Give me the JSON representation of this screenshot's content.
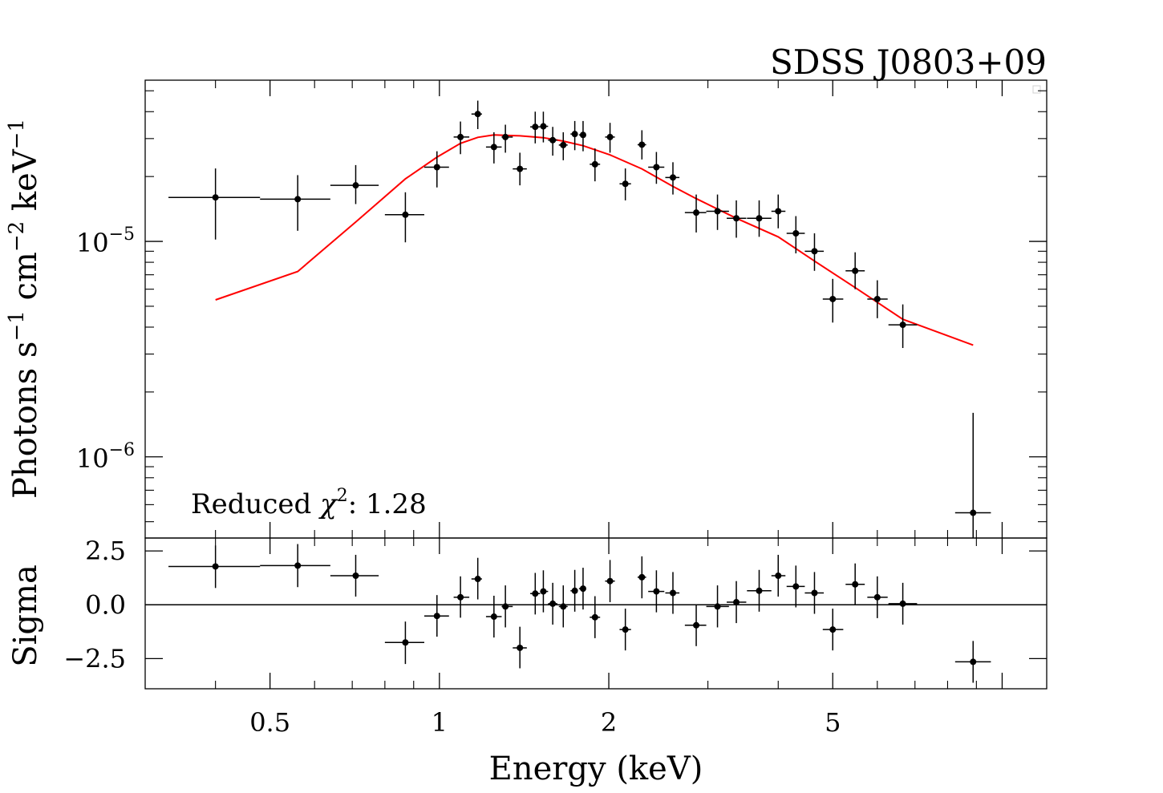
{
  "chart_data": [
    {
      "type": "scatter",
      "panel": "spectrum",
      "title": "SDSS J0803+09",
      "xlabel": "Energy (keV)",
      "ylabel": "Photons s^-1 cm^-2 keV^-1",
      "ylabel_parts": {
        "base": "Photons s",
        "e1": "−1",
        "mid": " cm",
        "e2": "−2",
        "mid2": " keV",
        "e3": "−1"
      },
      "xscale": "log",
      "yscale": "log",
      "xlim": [
        0.3,
        12
      ],
      "ylim": [
        4.2e-07,
        5.6e-05
      ],
      "y_ticks": [
        {
          "value": 1e-05,
          "base": "10",
          "exp": "−5"
        },
        {
          "value": 1e-06,
          "base": "10",
          "exp": "−6"
        }
      ],
      "annotation": {
        "prefix": "Reduced ",
        "symbol": "χ",
        "sup": "2",
        "suffix": ": 1.28"
      },
      "grid": false,
      "data_color": "#000000",
      "model_color": "#ff0000",
      "series": [
        {
          "kind": "errorbar",
          "points": [
            {
              "x": 0.4,
              "y": 1.6e-05,
              "xlo": 0.33,
              "xhi": 0.48,
              "ylo": 1.02e-05,
              "yhi": 2.18e-05
            },
            {
              "x": 0.56,
              "y": 1.57e-05,
              "xlo": 0.48,
              "xhi": 0.64,
              "ylo": 1.12e-05,
              "yhi": 2.03e-05
            },
            {
              "x": 0.71,
              "y": 1.82e-05,
              "xlo": 0.64,
              "xhi": 0.78,
              "ylo": 1.49e-05,
              "yhi": 2.26e-05
            },
            {
              "x": 0.87,
              "y": 1.33e-05,
              "xlo": 0.8,
              "xhi": 0.94,
              "ylo": 9.9e-06,
              "yhi": 1.69e-05
            },
            {
              "x": 0.99,
              "y": 2.21e-05,
              "xlo": 0.94,
              "xhi": 1.04,
              "ylo": 1.78e-05,
              "yhi": 2.62e-05
            },
            {
              "x": 1.09,
              "y": 3.05e-05,
              "xlo": 1.06,
              "xhi": 1.13,
              "ylo": 2.54e-05,
              "yhi": 3.6e-05
            },
            {
              "x": 1.17,
              "y": 3.9e-05,
              "xlo": 1.14,
              "xhi": 1.19,
              "ylo": 3.32e-05,
              "yhi": 4.5e-05
            },
            {
              "x": 1.25,
              "y": 2.74e-05,
              "xlo": 1.21,
              "xhi": 1.29,
              "ylo": 2.3e-05,
              "yhi": 3.21e-05
            },
            {
              "x": 1.31,
              "y": 3.05e-05,
              "xlo": 1.29,
              "xhi": 1.35,
              "ylo": 2.58e-05,
              "yhi": 3.48e-05
            },
            {
              "x": 1.39,
              "y": 2.17e-05,
              "xlo": 1.35,
              "xhi": 1.43,
              "ylo": 1.82e-05,
              "yhi": 2.58e-05
            },
            {
              "x": 1.48,
              "y": 3.4e-05,
              "xlo": 1.45,
              "xhi": 1.51,
              "ylo": 2.85e-05,
              "yhi": 4e-05
            },
            {
              "x": 1.53,
              "y": 3.42e-05,
              "xlo": 1.51,
              "xhi": 1.56,
              "ylo": 2.88e-05,
              "yhi": 4e-05
            },
            {
              "x": 1.59,
              "y": 2.95e-05,
              "xlo": 1.56,
              "xhi": 1.62,
              "ylo": 2.5e-05,
              "yhi": 3.4e-05
            },
            {
              "x": 1.66,
              "y": 2.8e-05,
              "xlo": 1.63,
              "xhi": 1.69,
              "ylo": 2.38e-05,
              "yhi": 3.21e-05
            },
            {
              "x": 1.74,
              "y": 3.15e-05,
              "xlo": 1.71,
              "xhi": 1.76,
              "ylo": 2.65e-05,
              "yhi": 3.62e-05
            },
            {
              "x": 1.8,
              "y": 3.12e-05,
              "xlo": 1.77,
              "xhi": 1.82,
              "ylo": 2.62e-05,
              "yhi": 3.62e-05
            },
            {
              "x": 1.89,
              "y": 2.28e-05,
              "xlo": 1.85,
              "xhi": 1.93,
              "ylo": 1.9e-05,
              "yhi": 2.7e-05
            },
            {
              "x": 2.01,
              "y": 3.05e-05,
              "xlo": 1.97,
              "xhi": 2.05,
              "ylo": 2.58e-05,
              "yhi": 3.55e-05
            },
            {
              "x": 2.14,
              "y": 1.85e-05,
              "xlo": 2.09,
              "xhi": 2.19,
              "ylo": 1.55e-05,
              "yhi": 2.18e-05
            },
            {
              "x": 2.29,
              "y": 2.81e-05,
              "xlo": 2.25,
              "xhi": 2.33,
              "ylo": 2.4e-05,
              "yhi": 3.28e-05
            },
            {
              "x": 2.43,
              "y": 2.21e-05,
              "xlo": 2.35,
              "xhi": 2.51,
              "ylo": 1.85e-05,
              "yhi": 2.6e-05
            },
            {
              "x": 2.6,
              "y": 1.98e-05,
              "xlo": 2.52,
              "xhi": 2.67,
              "ylo": 1.65e-05,
              "yhi": 2.33e-05
            },
            {
              "x": 2.86,
              "y": 1.36e-05,
              "xlo": 2.73,
              "xhi": 2.98,
              "ylo": 1.1e-05,
              "yhi": 1.65e-05
            },
            {
              "x": 3.12,
              "y": 1.38e-05,
              "xlo": 2.98,
              "xhi": 3.27,
              "ylo": 1.13e-05,
              "yhi": 1.65e-05
            },
            {
              "x": 3.37,
              "y": 1.28e-05,
              "xlo": 3.24,
              "xhi": 3.51,
              "ylo": 1.04e-05,
              "yhi": 1.55e-05
            },
            {
              "x": 3.7,
              "y": 1.28e-05,
              "xlo": 3.52,
              "xhi": 3.89,
              "ylo": 1.05e-05,
              "yhi": 1.55e-05
            },
            {
              "x": 4.0,
              "y": 1.38e-05,
              "xlo": 3.89,
              "xhi": 4.12,
              "ylo": 1.15e-05,
              "yhi": 1.65e-05
            },
            {
              "x": 4.3,
              "y": 1.09e-05,
              "xlo": 4.14,
              "xhi": 4.46,
              "ylo": 8.8e-06,
              "yhi": 1.31e-05
            },
            {
              "x": 4.64,
              "y": 9e-06,
              "xlo": 4.46,
              "xhi": 4.82,
              "ylo": 7.3e-06,
              "yhi": 1.09e-05
            },
            {
              "x": 5.0,
              "y": 5.4e-06,
              "xlo": 4.8,
              "xhi": 5.22,
              "ylo": 4.2e-06,
              "yhi": 6.7e-06
            },
            {
              "x": 5.48,
              "y": 7.3e-06,
              "xlo": 5.27,
              "xhi": 5.7,
              "ylo": 6e-06,
              "yhi": 8.9e-06
            },
            {
              "x": 6.0,
              "y": 5.4e-06,
              "xlo": 5.76,
              "xhi": 6.26,
              "ylo": 4.4e-06,
              "yhi": 6.6e-06
            },
            {
              "x": 6.66,
              "y": 4.1e-06,
              "xlo": 6.28,
              "xhi": 7.06,
              "ylo": 3.2e-06,
              "yhi": 5.1e-06
            },
            {
              "x": 8.88,
              "y": 5.5e-07,
              "xlo": 8.25,
              "xhi": 9.55,
              "ylo": 3e-07,
              "yhi": 1.6e-06
            }
          ]
        },
        {
          "kind": "model",
          "points": [
            {
              "x": 0.4,
              "y": 5.35e-06
            },
            {
              "x": 0.56,
              "y": 7.25e-06
            },
            {
              "x": 0.71,
              "y": 1.23e-05
            },
            {
              "x": 0.87,
              "y": 1.95e-05
            },
            {
              "x": 0.99,
              "y": 2.46e-05
            },
            {
              "x": 1.09,
              "y": 2.85e-05
            },
            {
              "x": 1.17,
              "y": 3.04e-05
            },
            {
              "x": 1.25,
              "y": 3.12e-05
            },
            {
              "x": 1.39,
              "y": 3.09e-05
            },
            {
              "x": 1.53,
              "y": 3.03e-05
            },
            {
              "x": 1.66,
              "y": 2.92e-05
            },
            {
              "x": 1.8,
              "y": 2.78e-05
            },
            {
              "x": 2.01,
              "y": 2.52e-05
            },
            {
              "x": 2.29,
              "y": 2.17e-05
            },
            {
              "x": 2.6,
              "y": 1.8e-05
            },
            {
              "x": 2.86,
              "y": 1.58e-05
            },
            {
              "x": 3.37,
              "y": 1.28e-05
            },
            {
              "x": 4.0,
              "y": 1.05e-05
            },
            {
              "x": 4.64,
              "y": 8.1e-06
            },
            {
              "x": 5.48,
              "y": 6.1e-06
            },
            {
              "x": 6.66,
              "y": 4.35e-06
            },
            {
              "x": 8.88,
              "y": 3.3e-06
            }
          ]
        }
      ]
    },
    {
      "type": "scatter",
      "panel": "residuals",
      "xlabel": "Energy (keV)",
      "ylabel": "Sigma",
      "xscale": "log",
      "yscale": "linear",
      "xlim": [
        0.3,
        12
      ],
      "ylim": [
        -3.9,
        3.1
      ],
      "x_ticks": [
        {
          "value": 0.5,
          "label": "0.5"
        },
        {
          "value": 1,
          "label": "1"
        },
        {
          "value": 2,
          "label": "2"
        },
        {
          "value": 5,
          "label": "5"
        }
      ],
      "y_ticks": [
        {
          "value": 2.5,
          "label": "2.5"
        },
        {
          "value": 0,
          "label": "0.0"
        },
        {
          "value": -2.5,
          "label": "−2.5"
        }
      ],
      "zero_line": 0,
      "grid": false,
      "series": [
        {
          "kind": "errorbar",
          "points": [
            {
              "x": 0.4,
              "y": 1.78,
              "xlo": 0.33,
              "xhi": 0.48,
              "ylo": 0.78,
              "yhi": 2.75
            },
            {
              "x": 0.56,
              "y": 1.82,
              "xlo": 0.48,
              "xhi": 0.64,
              "ylo": 0.82,
              "yhi": 2.82
            },
            {
              "x": 0.71,
              "y": 1.35,
              "xlo": 0.64,
              "xhi": 0.78,
              "ylo": 0.38,
              "yhi": 2.32
            },
            {
              "x": 0.87,
              "y": -1.75,
              "xlo": 0.8,
              "xhi": 0.94,
              "ylo": -2.75,
              "yhi": -0.78
            },
            {
              "x": 0.99,
              "y": -0.52,
              "xlo": 0.94,
              "xhi": 1.04,
              "ylo": -1.48,
              "yhi": 0.45
            },
            {
              "x": 1.09,
              "y": 0.35,
              "xlo": 1.06,
              "xhi": 1.13,
              "ylo": -0.6,
              "yhi": 1.32
            },
            {
              "x": 1.17,
              "y": 1.2,
              "xlo": 1.14,
              "xhi": 1.19,
              "ylo": 0.25,
              "yhi": 2.18
            },
            {
              "x": 1.25,
              "y": -0.55,
              "xlo": 1.21,
              "xhi": 1.29,
              "ylo": -1.52,
              "yhi": 0.42
            },
            {
              "x": 1.31,
              "y": -0.08,
              "xlo": 1.29,
              "xhi": 1.35,
              "ylo": -1.05,
              "yhi": 0.9
            },
            {
              "x": 1.39,
              "y": -2.0,
              "xlo": 1.35,
              "xhi": 1.43,
              "ylo": -2.95,
              "yhi": -1.02
            },
            {
              "x": 1.48,
              "y": 0.52,
              "xlo": 1.45,
              "xhi": 1.51,
              "ylo": -0.45,
              "yhi": 1.48
            },
            {
              "x": 1.53,
              "y": 0.62,
              "xlo": 1.51,
              "xhi": 1.56,
              "ylo": -0.35,
              "yhi": 1.6
            },
            {
              "x": 1.59,
              "y": 0.05,
              "xlo": 1.56,
              "xhi": 1.62,
              "ylo": -0.92,
              "yhi": 1.02
            },
            {
              "x": 1.66,
              "y": -0.08,
              "xlo": 1.63,
              "xhi": 1.69,
              "ylo": -1.05,
              "yhi": 0.9
            },
            {
              "x": 1.74,
              "y": 0.65,
              "xlo": 1.71,
              "xhi": 1.76,
              "ylo": -0.32,
              "yhi": 1.62
            },
            {
              "x": 1.8,
              "y": 0.75,
              "xlo": 1.77,
              "xhi": 1.82,
              "ylo": -0.22,
              "yhi": 1.72
            },
            {
              "x": 1.89,
              "y": -0.58,
              "xlo": 1.85,
              "xhi": 1.93,
              "ylo": -1.55,
              "yhi": 0.4
            },
            {
              "x": 2.01,
              "y": 1.1,
              "xlo": 1.97,
              "xhi": 2.05,
              "ylo": 0.12,
              "yhi": 2.08
            },
            {
              "x": 2.14,
              "y": -1.15,
              "xlo": 2.09,
              "xhi": 2.19,
              "ylo": -2.12,
              "yhi": -0.18
            },
            {
              "x": 2.29,
              "y": 1.28,
              "xlo": 2.25,
              "xhi": 2.33,
              "ylo": 0.3,
              "yhi": 2.25
            },
            {
              "x": 2.43,
              "y": 0.62,
              "xlo": 2.35,
              "xhi": 2.51,
              "ylo": -0.35,
              "yhi": 1.6
            },
            {
              "x": 2.6,
              "y": 0.55,
              "xlo": 2.52,
              "xhi": 2.67,
              "ylo": -0.42,
              "yhi": 1.52
            },
            {
              "x": 2.86,
              "y": -0.95,
              "xlo": 2.73,
              "xhi": 2.98,
              "ylo": -1.92,
              "yhi": 0.02
            },
            {
              "x": 3.12,
              "y": -0.08,
              "xlo": 2.98,
              "xhi": 3.27,
              "ylo": -1.05,
              "yhi": 0.9
            },
            {
              "x": 3.37,
              "y": 0.12,
              "xlo": 3.24,
              "xhi": 3.51,
              "ylo": -0.85,
              "yhi": 1.1
            },
            {
              "x": 3.7,
              "y": 0.65,
              "xlo": 3.52,
              "xhi": 3.89,
              "ylo": -0.32,
              "yhi": 1.62
            },
            {
              "x": 4.0,
              "y": 1.35,
              "xlo": 3.89,
              "xhi": 4.12,
              "ylo": 0.38,
              "yhi": 2.32
            },
            {
              "x": 4.3,
              "y": 0.85,
              "xlo": 4.14,
              "xhi": 4.46,
              "ylo": -0.12,
              "yhi": 1.82
            },
            {
              "x": 4.64,
              "y": 0.55,
              "xlo": 4.46,
              "xhi": 4.82,
              "ylo": -0.42,
              "yhi": 1.52
            },
            {
              "x": 5.0,
              "y": -1.15,
              "xlo": 4.8,
              "xhi": 5.22,
              "ylo": -2.12,
              "yhi": -0.18
            },
            {
              "x": 5.48,
              "y": 0.95,
              "xlo": 5.27,
              "xhi": 5.7,
              "ylo": -0.02,
              "yhi": 1.92
            },
            {
              "x": 6.0,
              "y": 0.35,
              "xlo": 5.76,
              "xhi": 6.26,
              "ylo": -0.62,
              "yhi": 1.32
            },
            {
              "x": 6.66,
              "y": 0.05,
              "xlo": 6.28,
              "xhi": 7.06,
              "ylo": -0.92,
              "yhi": 1.02
            },
            {
              "x": 8.88,
              "y": -2.65,
              "xlo": 8.25,
              "xhi": 9.55,
              "ylo": -3.62,
              "yhi": -1.68
            }
          ]
        }
      ]
    }
  ]
}
